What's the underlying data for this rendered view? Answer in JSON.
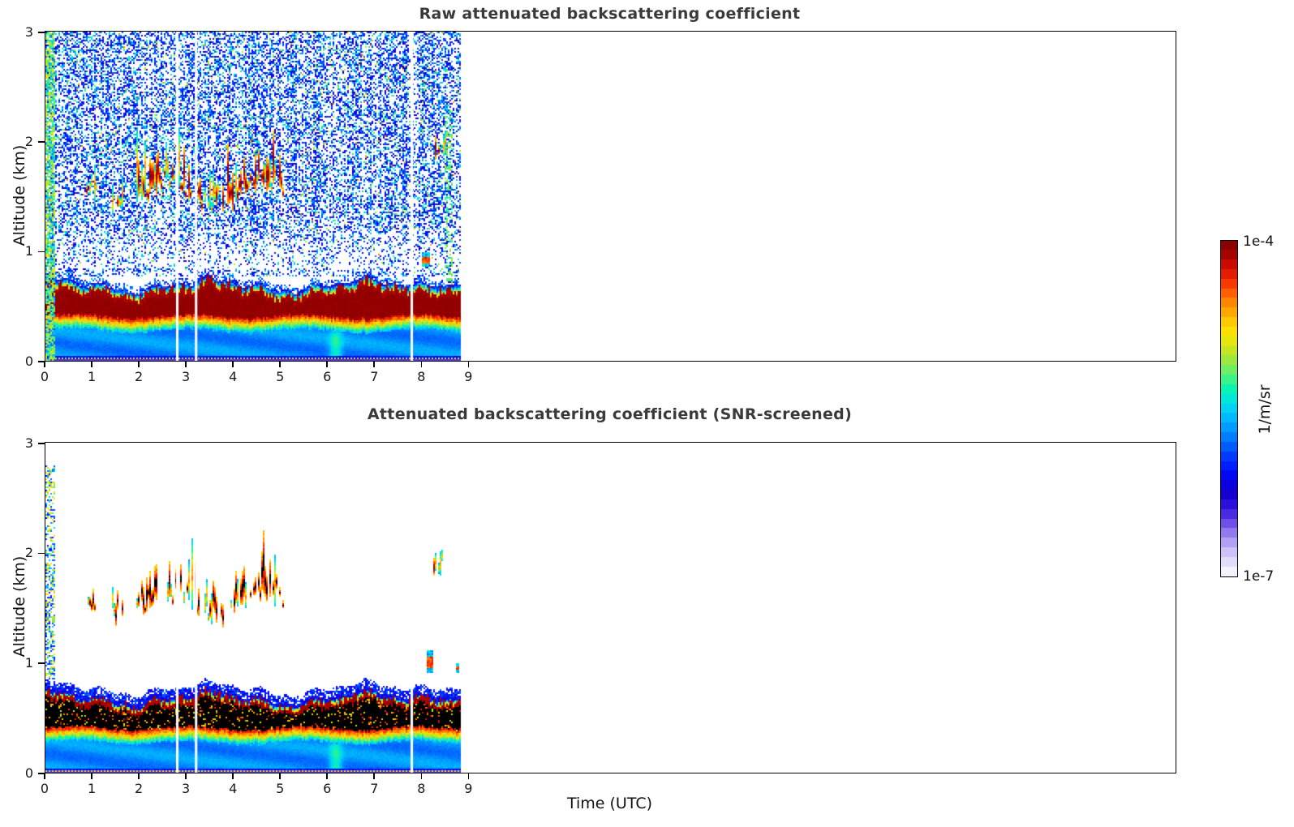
{
  "window": {
    "background": "#ffffff"
  },
  "panels": [
    {
      "id": "raw",
      "title": "Raw attenuated backscattering coefficient"
    },
    {
      "id": "screened",
      "title": "Attenuated backscattering coefficient (SNR-screened)"
    }
  ],
  "axes": {
    "x_label": "Time (UTC)",
    "y_label": "Altitude (km)",
    "x_tick_labels": [
      "0",
      "1",
      "2",
      "3",
      "4",
      "5",
      "6",
      "7",
      "8",
      "9"
    ],
    "y_tick_labels": [
      "0",
      "1",
      "2",
      "3"
    ]
  },
  "colorbar": {
    "max_label": "1e-4",
    "min_label": "1e-7",
    "unit_label": "1/m/sr",
    "colors": [
      "#f4f2fe",
      "#e2dcfb",
      "#ccc1f8",
      "#b1a0f4",
      "#9378f0",
      "#6f4fe9",
      "#4a2ae0",
      "#2a10d8",
      "#1500cf",
      "#0a00e0",
      "#0008f4",
      "#001eff",
      "#003cff",
      "#005cff",
      "#007cff",
      "#009cff",
      "#00baff",
      "#00d4f4",
      "#00e8da",
      "#0cf2b4",
      "#3cf28a",
      "#6eee62",
      "#9ce83e",
      "#c4e522",
      "#e6e60e",
      "#fbe000",
      "#ffc800",
      "#ffa800",
      "#ff8400",
      "#ff5f00",
      "#f93a00",
      "#e51d00",
      "#c90b00",
      "#a50300",
      "#8b0000"
    ]
  },
  "chart_data": [
    {
      "type": "heatmap",
      "panel": "raw",
      "title": "Raw attenuated backscattering coefficient",
      "xlabel": "Time (UTC)",
      "ylabel": "Altitude (km)",
      "xlim": [
        0,
        24
      ],
      "ylim": [
        0,
        3
      ],
      "x_tick_values": [
        0,
        1,
        2,
        3,
        4,
        5,
        6,
        7,
        8,
        9
      ],
      "y_tick_values": [
        0,
        1,
        2,
        3
      ],
      "value_scale": "log10",
      "value_min_1_per_m_sr": 1e-07,
      "value_max_1_per_m_sr": 0.0001,
      "data_time_span_utc": [
        0,
        8.85
      ],
      "gap_times_utc": [
        2.8,
        3.2,
        7.78
      ],
      "features": {
        "noise_speckle": {
          "alt_range_km": [
            0.78,
            3.0
          ],
          "density_high_alt": 0.45,
          "density_mid_alt": 0.14,
          "sparse_band_km": [
            0.85,
            1.35
          ],
          "log10_value_range": [
            -6.5,
            -5.3
          ]
        },
        "boundary_layer": {
          "top_km_mean": 0.7,
          "top_wave_amp_km": 0.05,
          "peak_band_km": [
            0.41,
            0.62
          ],
          "peak_log10_value": -4.0,
          "mixed_layer_log10_value": -5.72
        },
        "cloud_layer": {
          "alt_range_km": [
            1.4,
            2.2
          ],
          "time_clusters_utc": [
            [
              0.88,
              1.08
            ],
            [
              1.42,
              1.62
            ],
            [
              1.95,
              2.45
            ],
            [
              2.52,
              2.78
            ],
            [
              2.85,
              3.33
            ],
            [
              3.38,
              3.78
            ],
            [
              3.88,
              4.35
            ],
            [
              4.42,
              5.05
            ],
            [
              8.25,
              8.5
            ]
          ],
          "log10_value_range": [
            -4.9,
            -3.95
          ]
        },
        "left_edge_streak": {
          "time_utc": [
            0.02,
            0.18
          ],
          "alt_range_km": [
            0,
            3
          ],
          "log10_value_range": [
            -5.5,
            -4.7
          ]
        },
        "updraft_plume": {
          "time_utc": [
            5.92,
            6.38
          ],
          "alt_range_km": [
            0,
            0.58
          ]
        },
        "isolated_features": [
          {
            "time_utc": [
              8.02,
              8.14
            ],
            "alt_km": [
              0.86,
              0.98
            ]
          },
          {
            "time_utc": [
              8.5,
              8.62
            ],
            "alt_km": [
              0.7,
              2.3
            ]
          }
        ]
      }
    },
    {
      "type": "heatmap",
      "panel": "screened",
      "title": "Attenuated backscattering coefficient (SNR-screened)",
      "xlabel": "Time (UTC)",
      "ylabel": "Altitude (km)",
      "xlim": [
        0,
        24
      ],
      "ylim": [
        0,
        3
      ],
      "x_tick_values": [
        0,
        1,
        2,
        3,
        4,
        5,
        6,
        7,
        8,
        9
      ],
      "y_tick_values": [
        0,
        1,
        2,
        3
      ],
      "value_scale": "log10",
      "value_min_1_per_m_sr": 1e-07,
      "value_max_1_per_m_sr": 0.0001,
      "data_time_span_utc": [
        0,
        8.85
      ],
      "gap_times_utc": [
        2.8,
        3.2,
        7.78
      ],
      "features": {
        "noise_speckle": null,
        "boundary_layer": {
          "top_km_mean": 0.7,
          "top_wave_amp_km": 0.05,
          "peak_band_km": [
            0.41,
            0.62
          ],
          "peak_rendered_as": "black-overflow",
          "mixed_layer_log10_value": -5.72
        },
        "cloud_layer": {
          "alt_range_km": [
            1.4,
            2.2
          ],
          "time_clusters_utc": [
            [
              0.88,
              1.08
            ],
            [
              1.42,
              1.62
            ],
            [
              1.95,
              2.45
            ],
            [
              2.52,
              2.78
            ],
            [
              2.85,
              3.33
            ],
            [
              3.38,
              3.78
            ],
            [
              3.88,
              4.35
            ],
            [
              4.42,
              5.05
            ],
            [
              8.25,
              8.5
            ]
          ],
          "log10_value_range": [
            -5.6,
            -3.9
          ]
        },
        "left_edge_streak": {
          "time_utc": [
            0.03,
            0.2
          ],
          "alt_range_km": [
            0.85,
            2.78
          ],
          "log10_value_range": [
            -6.0,
            -5.0
          ]
        },
        "updraft_plume": {
          "time_utc": [
            5.92,
            6.38
          ],
          "alt_range_km": [
            0,
            0.58
          ]
        },
        "isolated_features": [
          {
            "time_utc": [
              8.1,
              8.22
            ],
            "alt_km": [
              0.92,
              1.1
            ]
          },
          {
            "time_utc": [
              8.72,
              8.78
            ],
            "alt_km": [
              0.92,
              0.99
            ]
          }
        ]
      }
    }
  ]
}
